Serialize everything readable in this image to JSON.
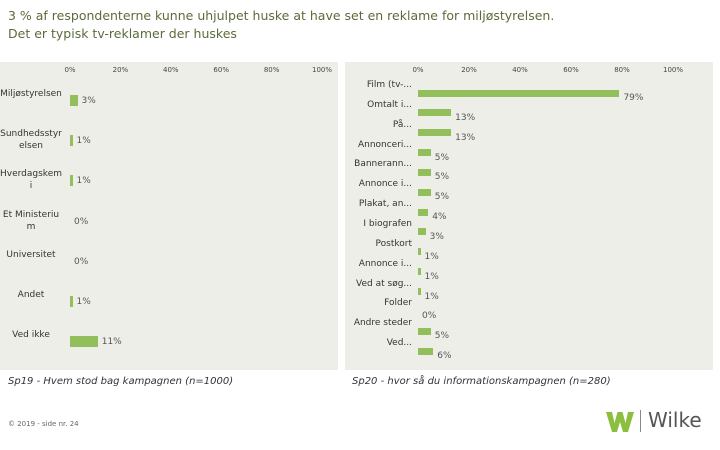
{
  "title": [
    "3 % af respondenterne kunne uhjulpet huske at have set en reklame for miljøstyrelsen.",
    "Det er typisk tv-reklamer der huskes"
  ],
  "chart_data": [
    {
      "type": "bar",
      "orientation": "horizontal",
      "caption": "Sp19 - Hvem stod bag kampagnen (n=1000)",
      "categories": [
        "Miljøstyrelsen",
        "Sundhedsstyrelsen",
        "Hverdagskemi",
        "Et Ministerium",
        "Universitet",
        "Andet",
        "Ved ikke"
      ],
      "values": [
        3,
        1,
        1,
        0,
        0,
        1,
        11
      ],
      "value_labels": [
        "3%",
        "1%",
        "1%",
        "0%",
        "0%",
        "1%",
        "11%"
      ],
      "color": "#92bf5c",
      "xlim": [
        0,
        100
      ],
      "xticks": [
        {
          "value": 0,
          "label": "0%"
        },
        {
          "value": 20,
          "label": "20%"
        },
        {
          "value": 40,
          "label": "40%"
        },
        {
          "value": 60,
          "label": "60%"
        },
        {
          "value": 80,
          "label": "80%"
        },
        {
          "value": 100,
          "label": "100%"
        }
      ]
    },
    {
      "type": "bar",
      "orientation": "horizontal",
      "caption": "Sp20 - hvor så du informationskampagnen (n=280)",
      "categories": [
        "Film (tv-...",
        "Omtalt i...",
        "På...",
        "Annonceri...",
        "Bannerann...",
        "Annonce i...",
        "Plakat, an...",
        "I biografen",
        "Postkort",
        "Annonce i...",
        "Ved at søg...",
        "Folder",
        "Andre steder",
        "Ved..."
      ],
      "values": [
        79,
        13,
        13,
        5,
        5,
        5,
        4,
        3,
        1,
        1,
        1,
        0,
        5,
        6
      ],
      "value_labels": [
        "79%",
        "13%",
        "13%",
        "5%",
        "5%",
        "5%",
        "4%",
        "3%",
        "1%",
        "1%",
        "1%",
        "0%",
        "5%",
        "6%"
      ],
      "color": "#92bf5c",
      "xlim": [
        0,
        100
      ],
      "xticks": [
        {
          "value": 0,
          "label": "0%"
        },
        {
          "value": 20,
          "label": "20%"
        },
        {
          "value": 40,
          "label": "40%"
        },
        {
          "value": 60,
          "label": "60%"
        },
        {
          "value": 80,
          "label": "80%"
        },
        {
          "value": 100,
          "label": "100%"
        }
      ]
    }
  ],
  "footer": "© 2019 - side nr. 24",
  "logo": "Wilke"
}
